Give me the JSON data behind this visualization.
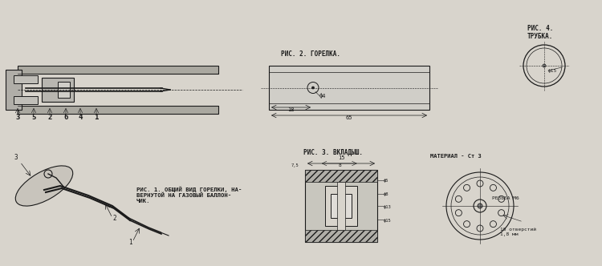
{
  "bg_color": "#d8d4cc",
  "line_color": "#1a1a1a",
  "title_fig1": "РИС. 1. ОБЩИЙ ВИД ГОРЕЛКИ, НА-\nВЕРНУТОЙ НА ГАЗОВЫЙ БАЛЛОН-\nЧИК.",
  "title_fig2": "РИС. 2. ГОРЕЛКА.",
  "title_fig3": "РИС. 3. ВКЛАДЫШ.",
  "title_fig4": "РИС. 4.\nТРУБКА.",
  "material_label": "МАТЕРИАЛ - Ст 3",
  "label_10otverstiy": "10 отверстий\n1,8 мм",
  "label_rezba": "РЕЗЬБА М6",
  "label_phi4": "ф4",
  "label_65": "65",
  "label_18": "18",
  "label_15_top": "15",
  "label_8": "8",
  "label_7_5": "7,5",
  "label_phi5": "ф5",
  "label_phi8": "ф8",
  "label_phi13": "ф13",
  "label_phi15": "ф15",
  "label_phi15_tube": "ф15",
  "parts_labels": [
    "3",
    "5",
    "2",
    "6",
    "4",
    "1"
  ]
}
